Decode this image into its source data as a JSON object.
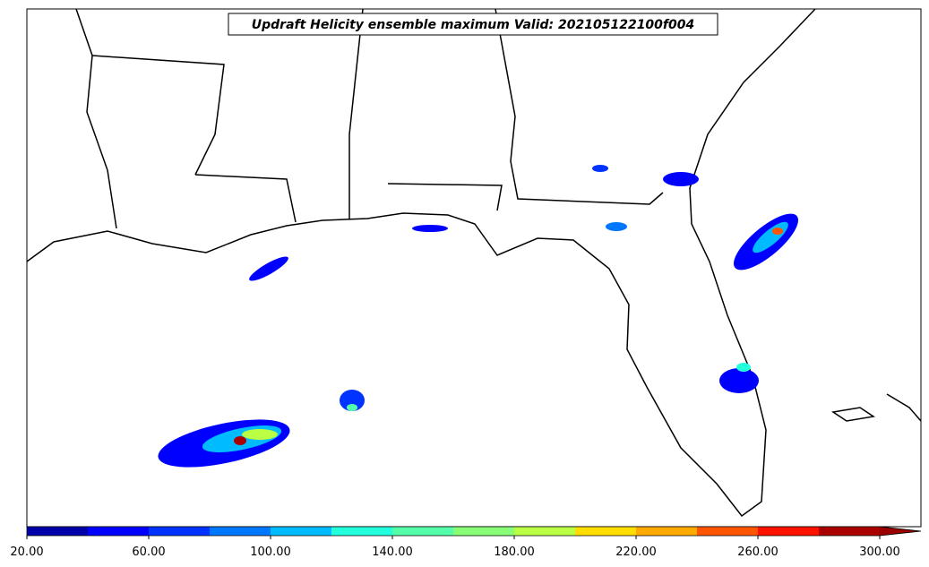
{
  "title": "Updraft Helicity ensemble maximum Valid: 202105122100f004",
  "colorbar": {
    "levels": [
      20,
      40,
      60,
      80,
      100,
      120,
      140,
      160,
      180,
      200,
      220,
      240,
      260,
      280,
      300
    ],
    "colors": [
      "#0000aa",
      "#0000ff",
      "#0033ff",
      "#0077ff",
      "#00bbff",
      "#22ffdd",
      "#55ffaa",
      "#88ff77",
      "#bbff44",
      "#ffdd00",
      "#ffaa00",
      "#ff5500",
      "#ff1100",
      "#aa0000"
    ],
    "extend_color": "#990000",
    "ticks": [
      {
        "value": 20,
        "label": "20.00"
      },
      {
        "value": 60,
        "label": "60.00"
      },
      {
        "value": 100,
        "label": "100.00"
      },
      {
        "value": 140,
        "label": "140.00"
      },
      {
        "value": 180,
        "label": "180.00"
      },
      {
        "value": 220,
        "label": "220.00"
      },
      {
        "value": 260,
        "label": "260.00"
      },
      {
        "value": 300,
        "label": "300.00"
      }
    ]
  }
}
